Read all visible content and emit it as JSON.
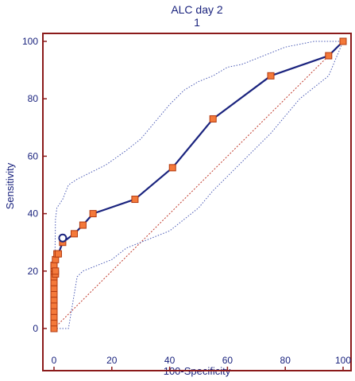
{
  "chart_data": {
    "type": "line",
    "title": "ALC day 2",
    "subtitle": "1",
    "xlabel": "100-Specificity",
    "ylabel": "Sensitivity",
    "xlim": [
      0,
      100
    ],
    "ylim": [
      0,
      100
    ],
    "x_ticks": [
      0,
      20,
      40,
      60,
      80,
      100
    ],
    "y_ticks": [
      0,
      20,
      40,
      60,
      80,
      100
    ],
    "grid": false,
    "colors": {
      "frame": "#8b1a1a",
      "roc_line": "#1a237e",
      "marker_fill": "#f4793a",
      "marker_stroke": "#b23a10",
      "ci_band": "#4a5ab5",
      "diagonal": "#c0392b",
      "optimal_point": "#1a237e"
    },
    "series": [
      {
        "type": "roc",
        "x": [
          0,
          0,
          0,
          0,
          0,
          0,
          0,
          0,
          0,
          0,
          0,
          0,
          0,
          0.5,
          0.5,
          0.5,
          1,
          1.5,
          3,
          7,
          10,
          13.5,
          28,
          41,
          55,
          75,
          95,
          100
        ],
        "y": [
          0,
          2,
          4,
          6,
          8,
          10,
          12,
          14,
          16,
          18,
          20,
          21,
          22,
          19,
          20,
          24,
          26,
          26,
          30,
          33,
          36,
          40,
          45,
          56,
          73,
          88,
          95,
          100
        ]
      },
      {
        "type": "ci_upper",
        "x": [
          0,
          0.5,
          1,
          3,
          5,
          8,
          12,
          18,
          25,
          30,
          35,
          40,
          45,
          50,
          55,
          60,
          65,
          70,
          75,
          80,
          85,
          90,
          95,
          100
        ],
        "y": [
          0,
          38,
          42,
          45,
          50,
          52,
          54,
          57,
          62,
          66,
          72,
          78,
          83,
          86,
          88,
          91,
          92,
          94,
          96,
          98,
          99,
          100,
          100,
          100
        ]
      },
      {
        "type": "ci_lower",
        "x": [
          0,
          0,
          5,
          8,
          10,
          15,
          20,
          25,
          30,
          35,
          40,
          45,
          50,
          55,
          60,
          65,
          70,
          75,
          80,
          85,
          90,
          95,
          100
        ],
        "y": [
          0,
          0,
          0,
          18,
          20,
          22,
          24,
          28,
          30,
          32,
          34,
          38,
          42,
          48,
          53,
          58,
          63,
          68,
          74,
          80,
          84,
          88,
          100
        ]
      }
    ],
    "optimal_point": {
      "x": 3,
      "y": 31.5
    }
  }
}
